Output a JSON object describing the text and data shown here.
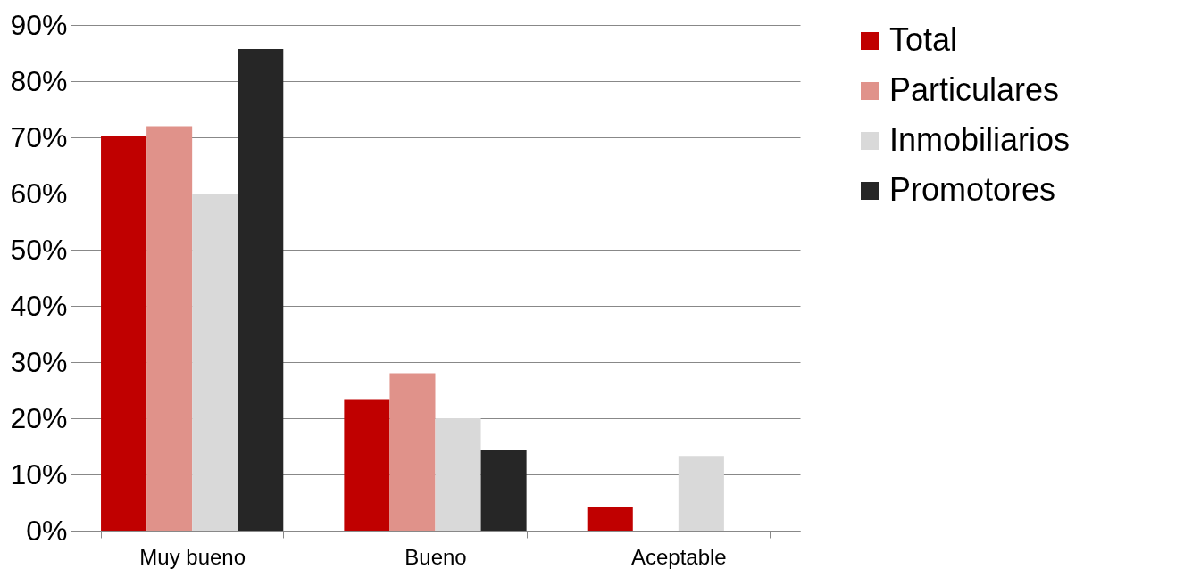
{
  "chart_data": {
    "type": "bar",
    "categories": [
      "Muy bueno",
      "Bueno",
      "Aceptable"
    ],
    "series": [
      {
        "name": "Total",
        "color": "#c00000",
        "values": [
          70.2,
          23.4,
          4.3
        ]
      },
      {
        "name": "Particulares",
        "color": "#e0928a",
        "values": [
          72,
          28,
          null
        ]
      },
      {
        "name": "Inmobiliarios",
        "color": "#d9d9d9",
        "values": [
          60,
          20,
          13.3
        ]
      },
      {
        "name": "Promotores",
        "color": "#262626",
        "values": [
          85.7,
          14.3,
          null
        ]
      }
    ],
    "ylim": [
      0,
      90
    ],
    "yticks": [
      {
        "value": 0,
        "label": "0%"
      },
      {
        "value": 10,
        "label": "10%"
      },
      {
        "value": 20,
        "label": "20%"
      },
      {
        "value": 30,
        "label": "30%"
      },
      {
        "value": 40,
        "label": "40%"
      },
      {
        "value": 50,
        "label": "50%"
      },
      {
        "value": 60,
        "label": "60%"
      },
      {
        "value": 70,
        "label": "70%"
      },
      {
        "value": 80,
        "label": "80%"
      },
      {
        "value": 90,
        "label": "90%"
      }
    ],
    "grid": "y",
    "legend": "right"
  }
}
